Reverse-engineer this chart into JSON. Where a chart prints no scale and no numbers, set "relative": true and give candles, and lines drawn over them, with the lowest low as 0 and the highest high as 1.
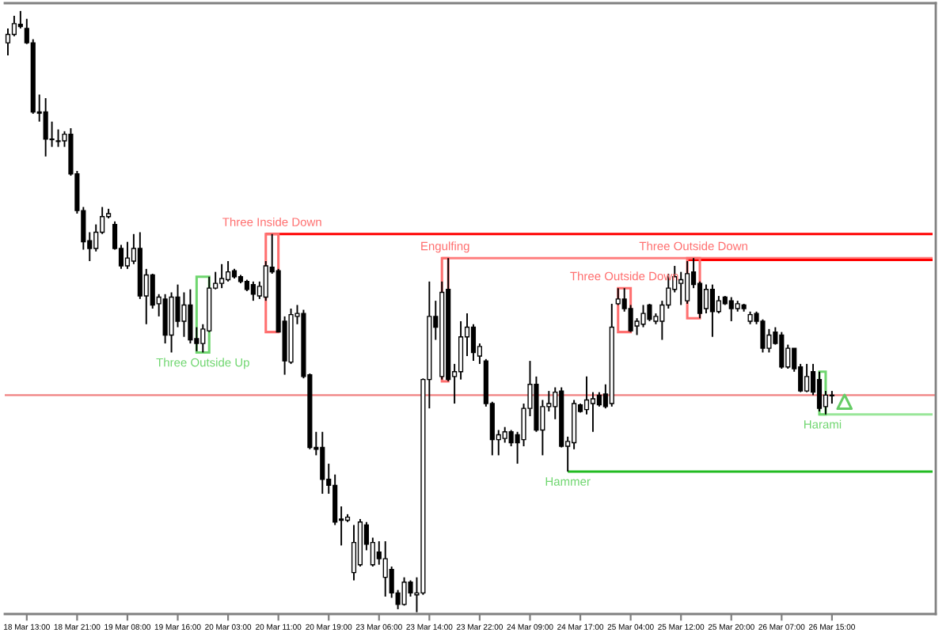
{
  "chart_data": {
    "type": "candlestick",
    "relative": true,
    "color": "#000000",
    "categories": [
      null,
      null,
      null,
      "18 Mar 13:00",
      null,
      null,
      null,
      null,
      null,
      null,
      null,
      "18 Mar 21:00",
      null,
      null,
      null,
      null,
      null,
      null,
      null,
      "19 Mar 08:00",
      null,
      null,
      null,
      null,
      null,
      null,
      null,
      "19 Mar 16:00",
      null,
      null,
      null,
      null,
      null,
      null,
      null,
      "20 Mar 03:00",
      null,
      null,
      null,
      null,
      null,
      null,
      null,
      "20 Mar 11:00",
      null,
      null,
      null,
      null,
      null,
      null,
      null,
      "20 Mar 19:00",
      null,
      null,
      null,
      null,
      null,
      null,
      null,
      "23 Mar 06:00",
      null,
      null,
      null,
      null,
      null,
      null,
      null,
      "23 Mar 14:00",
      null,
      null,
      null,
      null,
      null,
      null,
      null,
      "23 Mar 22:00",
      null,
      null,
      null,
      null,
      null,
      null,
      null,
      "24 Mar 09:00",
      null,
      null,
      null,
      null,
      null,
      null,
      null,
      "24 Mar 17:00",
      null,
      null,
      null,
      null,
      null,
      null,
      null,
      "25 Mar 04:00",
      null,
      null,
      null,
      null,
      null,
      null,
      null,
      "25 Mar 12:00",
      null,
      null,
      null,
      null,
      null,
      null,
      null,
      "25 Mar 20:00",
      null,
      null,
      null,
      null,
      null,
      null,
      null,
      "26 Mar 07:00",
      null,
      null,
      null,
      null,
      null,
      null,
      null,
      "26 Mar 15:00",
      null,
      null,
      null,
      null,
      null,
      null,
      null,
      null,
      null,
      null,
      null,
      null,
      null,
      null,
      null,
      null
    ],
    "ohlc": [
      [
        0.947,
        0.971,
        0.926,
        0.961
      ],
      [
        0.961,
        0.992,
        0.958,
        0.979
      ],
      [
        0.978,
        1.0,
        0.971,
        0.974
      ],
      [
        0.971,
        0.987,
        0.945,
        0.947
      ],
      [
        0.947,
        0.953,
        0.829,
        0.832
      ],
      [
        0.832,
        0.861,
        0.816,
        0.83
      ],
      [
        0.832,
        0.855,
        0.758,
        0.787
      ],
      [
        0.787,
        0.816,
        0.774,
        0.786
      ],
      [
        0.784,
        0.803,
        0.774,
        0.783
      ],
      [
        0.784,
        0.8,
        0.774,
        0.795
      ],
      [
        0.795,
        0.805,
        0.726,
        0.729
      ],
      [
        0.729,
        0.734,
        0.663,
        0.668
      ],
      [
        0.668,
        0.674,
        0.603,
        0.616
      ],
      [
        0.618,
        0.632,
        0.584,
        0.605
      ],
      [
        0.605,
        0.645,
        0.6,
        0.632
      ],
      [
        0.632,
        0.674,
        0.629,
        0.658
      ],
      [
        0.658,
        0.671,
        0.655,
        0.663
      ],
      [
        0.645,
        0.65,
        0.603,
        0.605
      ],
      [
        0.605,
        0.611,
        0.571,
        0.576
      ],
      [
        0.576,
        0.616,
        0.571,
        0.589
      ],
      [
        0.584,
        0.629,
        0.579,
        0.605
      ],
      [
        0.605,
        0.632,
        0.521,
        0.526
      ],
      [
        0.526,
        0.571,
        0.479,
        0.561
      ],
      [
        0.561,
        0.563,
        0.505,
        0.511
      ],
      [
        0.513,
        0.529,
        0.492,
        0.524
      ],
      [
        0.521,
        0.529,
        0.447,
        0.461
      ],
      [
        0.461,
        0.532,
        0.432,
        0.524
      ],
      [
        0.524,
        0.545,
        0.474,
        0.484
      ],
      [
        0.484,
        0.532,
        0.458,
        0.511
      ],
      [
        0.511,
        0.537,
        0.447,
        0.453
      ],
      [
        0.455,
        0.474,
        0.434,
        0.447
      ],
      [
        0.447,
        0.479,
        0.432,
        0.471
      ],
      [
        0.468,
        0.558,
        0.466,
        0.539
      ],
      [
        0.539,
        0.566,
        0.537,
        0.547
      ],
      [
        0.547,
        0.579,
        0.539,
        0.555
      ],
      [
        0.553,
        0.584,
        0.55,
        0.566
      ],
      [
        0.568,
        0.571,
        0.555,
        0.558
      ],
      [
        0.558,
        0.561,
        0.547,
        0.55
      ],
      [
        0.55,
        0.553,
        0.534,
        0.537
      ],
      [
        0.545,
        0.55,
        0.518,
        0.529
      ],
      [
        0.526,
        0.55,
        0.521,
        0.542
      ],
      [
        0.524,
        0.584,
        0.518,
        0.576
      ],
      [
        0.574,
        0.629,
        0.563,
        0.566
      ],
      [
        0.568,
        0.571,
        0.466,
        0.466
      ],
      [
        0.484,
        0.492,
        0.395,
        0.418
      ],
      [
        0.416,
        0.505,
        0.413,
        0.495
      ],
      [
        0.492,
        0.511,
        0.479,
        0.497
      ],
      [
        0.497,
        0.503,
        0.389,
        0.392
      ],
      [
        0.395,
        0.397,
        0.271,
        0.274
      ],
      [
        0.274,
        0.3,
        0.261,
        0.271
      ],
      [
        0.274,
        0.3,
        0.197,
        0.221
      ],
      [
        0.221,
        0.247,
        0.197,
        0.211
      ],
      [
        0.211,
        0.229,
        0.145,
        0.15
      ],
      [
        0.155,
        0.176,
        0.111,
        0.153
      ],
      [
        0.153,
        0.163,
        0.15,
        0.158
      ],
      [
        0.066,
        0.145,
        0.053,
        0.116
      ],
      [
        0.079,
        0.155,
        0.076,
        0.15
      ],
      [
        0.145,
        0.15,
        0.103,
        0.113
      ],
      [
        0.079,
        0.124,
        0.076,
        0.116
      ],
      [
        0.1,
        0.118,
        0.079,
        0.089
      ],
      [
        0.058,
        0.118,
        0.026,
        0.089
      ],
      [
        0.071,
        0.076,
        0.024,
        0.032
      ],
      [
        0.032,
        0.037,
        0.005,
        0.013
      ],
      [
        0.013,
        0.058,
        0.011,
        0.05
      ],
      [
        0.05,
        0.053,
        0.026,
        0.032
      ],
      [
        0.029,
        0.058,
        0.0,
        0.032
      ],
      [
        0.032,
        0.389,
        0.029,
        0.387
      ],
      [
        0.387,
        0.55,
        0.339,
        0.492
      ],
      [
        0.492,
        0.518,
        0.453,
        0.474
      ],
      [
        0.392,
        0.55,
        0.387,
        0.532
      ],
      [
        0.537,
        0.589,
        0.384,
        0.387
      ],
      [
        0.392,
        0.413,
        0.347,
        0.4
      ],
      [
        0.4,
        0.484,
        0.387,
        0.458
      ],
      [
        0.458,
        0.497,
        0.426,
        0.474
      ],
      [
        0.474,
        0.479,
        0.418,
        0.432
      ],
      [
        0.426,
        0.447,
        0.413,
        0.442
      ],
      [
        0.418,
        0.421,
        0.342,
        0.347
      ],
      [
        0.347,
        0.35,
        0.261,
        0.287
      ],
      [
        0.287,
        0.303,
        0.261,
        0.295
      ],
      [
        0.289,
        0.308,
        0.282,
        0.3
      ],
      [
        0.3,
        0.303,
        0.276,
        0.282
      ],
      [
        0.295,
        0.3,
        0.247,
        0.282
      ],
      [
        0.287,
        0.347,
        0.276,
        0.339
      ],
      [
        0.339,
        0.418,
        0.326,
        0.379
      ],
      [
        0.379,
        0.392,
        0.3,
        0.303
      ],
      [
        0.303,
        0.353,
        0.261,
        0.342
      ],
      [
        0.342,
        0.368,
        0.334,
        0.347
      ],
      [
        0.342,
        0.374,
        0.321,
        0.366
      ],
      [
        0.368,
        0.374,
        0.274,
        0.276
      ],
      [
        0.276,
        0.292,
        0.234,
        0.284
      ],
      [
        0.282,
        0.353,
        0.271,
        0.347
      ],
      [
        0.345,
        0.347,
        0.332,
        0.334
      ],
      [
        0.337,
        0.392,
        0.329,
        0.353
      ],
      [
        0.347,
        0.366,
        0.3,
        0.355
      ],
      [
        0.361,
        0.366,
        0.342,
        0.345
      ],
      [
        0.363,
        0.379,
        0.339,
        0.342
      ],
      [
        0.347,
        0.513,
        0.342,
        0.474
      ],
      [
        0.513,
        0.539,
        0.511,
        0.521
      ],
      [
        0.521,
        0.539,
        0.5,
        0.505
      ],
      [
        0.505,
        0.511,
        0.466,
        0.468
      ],
      [
        0.476,
        0.489,
        0.461,
        0.484
      ],
      [
        0.479,
        0.511,
        0.474,
        0.497
      ],
      [
        0.511,
        0.513,
        0.484,
        0.487
      ],
      [
        0.484,
        0.497,
        0.479,
        0.492
      ],
      [
        0.484,
        0.518,
        0.453,
        0.511
      ],
      [
        0.511,
        0.563,
        0.505,
        0.539
      ],
      [
        0.537,
        0.576,
        0.532,
        0.558
      ],
      [
        0.547,
        0.566,
        0.511,
        0.553
      ],
      [
        0.518,
        0.584,
        0.513,
        0.563
      ],
      [
        0.566,
        0.589,
        0.539,
        0.545
      ],
      [
        0.547,
        0.55,
        0.489,
        0.497
      ],
      [
        0.505,
        0.545,
        0.497,
        0.537
      ],
      [
        0.537,
        0.545,
        0.458,
        0.5
      ],
      [
        0.5,
        0.526,
        0.497,
        0.518
      ],
      [
        0.524,
        0.526,
        0.511,
        0.513
      ],
      [
        0.518,
        0.524,
        0.484,
        0.505
      ],
      [
        0.505,
        0.518,
        0.5,
        0.513
      ],
      [
        0.511,
        0.513,
        0.5,
        0.505
      ],
      [
        0.484,
        0.5,
        0.479,
        0.495
      ],
      [
        0.497,
        0.5,
        0.479,
        0.484
      ],
      [
        0.484,
        0.487,
        0.432,
        0.439
      ],
      [
        0.439,
        0.471,
        0.432,
        0.461
      ],
      [
        0.466,
        0.474,
        0.445,
        0.447
      ],
      [
        0.461,
        0.466,
        0.405,
        0.408
      ],
      [
        0.408,
        0.445,
        0.405,
        0.439
      ],
      [
        0.439,
        0.439,
        0.4,
        0.405
      ],
      [
        0.408,
        0.413,
        0.366,
        0.368
      ],
      [
        0.368,
        0.413,
        0.366,
        0.392
      ],
      [
        0.4,
        0.413,
        0.361,
        0.366
      ],
      [
        0.387,
        0.4,
        0.334,
        0.339
      ],
      [
        0.342,
        0.368,
        0.329,
        0.361
      ],
      [
        0.361,
        0.368,
        0.347,
        0.36
      ],
      null,
      null,
      null,
      null,
      null,
      null,
      null,
      null,
      null,
      null,
      null,
      null,
      null,
      null,
      null,
      null
    ],
    "series": [
      {
        "type": "line",
        "color": "#ff0000",
        "values": [
          null,
          null,
          null,
          null,
          null,
          null,
          null,
          null,
          null,
          null,
          null,
          null,
          null,
          null,
          null,
          null,
          null,
          null,
          null,
          null,
          null,
          null,
          null,
          null,
          null,
          null,
          null,
          null,
          null,
          null,
          null,
          null,
          null,
          null,
          null,
          null,
          null,
          null,
          null,
          null,
          null,
          0.629,
          0.629,
          0.629,
          0.629,
          0.629,
          0.629,
          0.629,
          0.629,
          0.629,
          0.629,
          0.629,
          0.629,
          0.629,
          0.629,
          0.629,
          0.629,
          0.629,
          0.629,
          0.629,
          0.629,
          0.629,
          0.629,
          0.629,
          0.629,
          0.629,
          0.629,
          0.629,
          0.629,
          0.629,
          0.629,
          0.629,
          0.629,
          0.629,
          0.629,
          0.629,
          0.629,
          0.629,
          0.629,
          0.629,
          0.629,
          0.629,
          0.629,
          0.629,
          0.629,
          0.629,
          0.629,
          0.629,
          0.629,
          0.629,
          0.629,
          0.629,
          0.629,
          0.629,
          0.629,
          0.629,
          0.629,
          0.629,
          0.629,
          0.629,
          0.629,
          0.629,
          0.629,
          0.629,
          0.629,
          0.629,
          0.629,
          0.629,
          0.629,
          0.629,
          0.629,
          0.629,
          0.629,
          0.629,
          0.629,
          0.629,
          0.629,
          0.629,
          0.629,
          0.629,
          0.629,
          0.629,
          0.629,
          0.629,
          0.629,
          0.629,
          0.629,
          0.629,
          0.629,
          0.629,
          0.629,
          0.629,
          0.629,
          0.629,
          0.629,
          0.629,
          0.629,
          0.629,
          0.629,
          0.629,
          0.629,
          0.629,
          0.629,
          0.629,
          0.629,
          0.629,
          0.629,
          0.629
        ]
      },
      {
        "type": "line",
        "color": "#ff7f7f",
        "values": [
          null,
          null,
          null,
          null,
          null,
          null,
          null,
          null,
          null,
          null,
          null,
          null,
          null,
          null,
          null,
          null,
          null,
          null,
          null,
          null,
          null,
          null,
          null,
          null,
          null,
          null,
          null,
          null,
          null,
          null,
          null,
          null,
          null,
          null,
          null,
          null,
          null,
          null,
          null,
          null,
          null,
          null,
          null,
          null,
          null,
          null,
          null,
          null,
          null,
          null,
          null,
          null,
          null,
          null,
          null,
          null,
          null,
          null,
          null,
          null,
          null,
          null,
          null,
          null,
          null,
          null,
          null,
          null,
          null,
          0.589,
          0.589,
          0.589,
          0.589,
          0.589,
          0.589,
          0.589,
          0.589,
          0.589,
          0.589,
          0.589,
          0.589,
          0.589,
          0.589,
          0.589,
          0.589,
          0.589,
          0.589,
          0.589,
          0.589,
          0.589,
          0.589,
          0.589,
          0.589,
          0.589,
          0.589,
          0.589,
          0.589,
          0.589,
          0.589,
          0.589,
          0.589,
          0.589,
          0.589,
          0.589,
          0.589,
          0.589,
          0.589,
          0.589,
          0.589,
          0.589,
          0.589,
          0.589,
          0.589,
          0.589,
          0.589,
          0.589,
          0.589,
          0.589,
          0.589,
          0.589,
          0.589,
          0.589,
          0.589,
          0.589,
          0.589,
          0.589,
          0.589,
          0.589,
          0.589,
          0.589,
          0.589,
          0.589,
          0.589,
          0.589,
          0.589,
          0.589,
          0.589,
          0.589,
          0.589,
          0.589,
          0.589,
          0.589,
          0.589,
          0.589,
          0.589,
          0.589,
          0.589,
          0.589
        ]
      },
      {
        "type": "line",
        "color": "#ff0000",
        "values": [
          null,
          null,
          null,
          null,
          null,
          null,
          null,
          null,
          null,
          null,
          null,
          null,
          null,
          null,
          null,
          null,
          null,
          null,
          null,
          null,
          null,
          null,
          null,
          null,
          null,
          null,
          null,
          null,
          null,
          null,
          null,
          null,
          null,
          null,
          null,
          null,
          null,
          null,
          null,
          null,
          null,
          null,
          null,
          null,
          null,
          null,
          null,
          null,
          null,
          null,
          null,
          null,
          null,
          null,
          null,
          null,
          null,
          null,
          null,
          null,
          null,
          null,
          null,
          null,
          null,
          null,
          null,
          null,
          null,
          null,
          null,
          null,
          null,
          null,
          null,
          null,
          null,
          null,
          null,
          null,
          null,
          null,
          null,
          null,
          null,
          null,
          null,
          null,
          null,
          null,
          null,
          null,
          null,
          null,
          null,
          null,
          null,
          null,
          null,
          null,
          null,
          null,
          null,
          null,
          null,
          null,
          null,
          null,
          0.586,
          0.586,
          0.586,
          0.586,
          0.586,
          0.586,
          0.586,
          0.586,
          0.586,
          0.586,
          0.586,
          0.586,
          0.586,
          0.586,
          0.586,
          0.586,
          0.586,
          0.586,
          0.586,
          0.586,
          0.586,
          0.586,
          0.586,
          0.586,
          0.586,
          0.586,
          0.586,
          0.586,
          0.586,
          0.586,
          0.586,
          0.586,
          0.586,
          0.586,
          0.586,
          0.586,
          0.586,
          0.586,
          0.586,
          0.586
        ]
      },
      {
        "type": "line",
        "color": "#22bb22",
        "values": [
          null,
          null,
          null,
          null,
          null,
          null,
          null,
          null,
          null,
          null,
          null,
          null,
          null,
          null,
          null,
          null,
          null,
          null,
          null,
          null,
          null,
          null,
          null,
          null,
          null,
          null,
          null,
          null,
          null,
          null,
          null,
          null,
          null,
          null,
          null,
          null,
          null,
          null,
          null,
          null,
          null,
          null,
          null,
          null,
          null,
          null,
          null,
          null,
          null,
          null,
          null,
          null,
          null,
          null,
          null,
          null,
          null,
          null,
          null,
          null,
          null,
          null,
          null,
          null,
          null,
          null,
          null,
          null,
          null,
          null,
          null,
          null,
          null,
          null,
          null,
          null,
          null,
          null,
          null,
          null,
          null,
          null,
          null,
          null,
          null,
          null,
          null,
          null,
          null,
          0.234,
          0.234,
          0.234,
          0.234,
          0.234,
          0.234,
          0.234,
          0.234,
          0.234,
          0.234,
          0.234,
          0.234,
          0.234,
          0.234,
          0.234,
          0.234,
          0.234,
          0.234,
          0.234,
          0.234,
          0.234,
          0.234,
          0.234,
          0.234,
          0.234,
          0.234,
          0.234,
          0.234,
          0.234,
          0.234,
          0.234,
          0.234,
          0.234,
          0.234,
          0.234,
          0.234,
          0.234,
          0.234,
          0.234,
          0.234,
          0.234,
          0.234,
          0.234,
          0.234,
          0.234,
          0.234,
          0.234,
          0.234,
          0.234,
          0.234,
          0.234,
          0.234,
          0.234,
          0.234,
          0.234,
          0.234,
          0.234,
          0.234,
          0.234
        ]
      },
      {
        "type": "line",
        "color": "#99e699",
        "values": [
          null,
          null,
          null,
          null,
          null,
          null,
          null,
          null,
          null,
          null,
          null,
          null,
          null,
          null,
          null,
          null,
          null,
          null,
          null,
          null,
          null,
          null,
          null,
          null,
          null,
          null,
          null,
          null,
          null,
          null,
          null,
          null,
          null,
          null,
          null,
          null,
          null,
          null,
          null,
          null,
          null,
          null,
          null,
          null,
          null,
          null,
          null,
          null,
          null,
          null,
          null,
          null,
          null,
          null,
          null,
          null,
          null,
          null,
          null,
          null,
          null,
          null,
          null,
          null,
          null,
          null,
          null,
          null,
          null,
          null,
          null,
          null,
          null,
          null,
          null,
          null,
          null,
          null,
          null,
          null,
          null,
          null,
          null,
          null,
          null,
          null,
          null,
          null,
          null,
          null,
          null,
          null,
          null,
          null,
          null,
          null,
          null,
          null,
          null,
          null,
          null,
          null,
          null,
          null,
          null,
          null,
          null,
          null,
          null,
          null,
          null,
          null,
          null,
          null,
          null,
          null,
          null,
          null,
          null,
          null,
          null,
          null,
          null,
          null,
          null,
          null,
          null,
          null,
          null,
          0.329,
          0.329,
          0.329,
          0.329,
          0.329,
          0.329,
          0.329,
          0.329,
          0.329,
          0.329,
          0.329,
          0.329,
          0.329,
          0.329,
          0.329,
          0.329,
          0.329,
          0.329,
          0.329
        ]
      },
      {
        "type": "scatter",
        "color": "#66cc66",
        "marker": "triangle",
        "values": [
          null,
          null,
          null,
          null,
          null,
          null,
          null,
          null,
          null,
          null,
          null,
          null,
          null,
          null,
          null,
          null,
          null,
          null,
          null,
          null,
          null,
          null,
          null,
          null,
          null,
          null,
          null,
          null,
          null,
          null,
          null,
          null,
          null,
          null,
          null,
          null,
          null,
          null,
          null,
          null,
          null,
          null,
          null,
          null,
          null,
          null,
          null,
          null,
          null,
          null,
          null,
          null,
          null,
          null,
          null,
          null,
          null,
          null,
          null,
          null,
          null,
          null,
          null,
          null,
          null,
          null,
          null,
          null,
          null,
          null,
          null,
          null,
          null,
          null,
          null,
          null,
          null,
          null,
          null,
          null,
          null,
          null,
          null,
          null,
          null,
          null,
          null,
          null,
          null,
          null,
          null,
          null,
          null,
          null,
          null,
          null,
          null,
          null,
          null,
          null,
          null,
          null,
          null,
          null,
          null,
          null,
          null,
          null,
          null,
          null,
          null,
          null,
          null,
          null,
          null,
          null,
          null,
          null,
          null,
          null,
          null,
          null,
          null,
          null,
          null,
          null,
          null,
          null,
          null,
          null,
          null,
          null,
          null,
          0.35,
          null,
          null,
          null,
          null,
          null,
          null,
          null,
          null,
          null,
          null,
          null,
          null,
          null,
          null
        ]
      }
    ],
    "ref_lines": [
      {
        "axis": "y",
        "value": 0.361,
        "color": "#f08080"
      }
    ],
    "annotations": [
      "Three Outside Up",
      "Three Inside Down",
      "Engulfing",
      "Three Outside Down",
      "Three Outside Down",
      "Hammer",
      "Harami"
    ]
  }
}
